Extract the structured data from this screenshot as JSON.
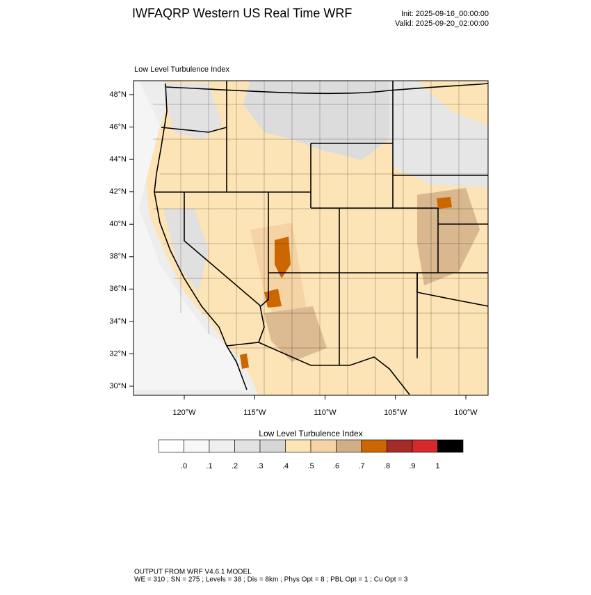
{
  "header": {
    "title": "IWFAQRP Western US Real Time WRF",
    "init": "Init: 2025-09-16_00:00:00",
    "valid": "Valid: 2025-09-20_02:00:00"
  },
  "map": {
    "label": "Low Level Turbulence Index",
    "lat_ticks": [
      {
        "value": 48,
        "label": "48°N"
      },
      {
        "value": 46,
        "label": "46°N"
      },
      {
        "value": 44,
        "label": "44°N"
      },
      {
        "value": 42,
        "label": "42°N"
      },
      {
        "value": 40,
        "label": "40°N"
      },
      {
        "value": 38,
        "label": "38°N"
      },
      {
        "value": 36,
        "label": "36°N"
      },
      {
        "value": 34,
        "label": "34°N"
      },
      {
        "value": 32,
        "label": "32°N"
      },
      {
        "value": 30,
        "label": "30°N"
      }
    ],
    "lon_ticks": [
      {
        "value": -120,
        "label": "120°W"
      },
      {
        "value": -115,
        "label": "115°W"
      },
      {
        "value": -110,
        "label": "110°W"
      },
      {
        "value": -105,
        "label": "105°W"
      },
      {
        "value": -100,
        "label": "100°W"
      }
    ]
  },
  "colorbar": {
    "title": "Low Level Turbulence Index",
    "levels": [
      {
        "value": 0,
        "label": ".0"
      },
      {
        "value": 0.1,
        "label": ".1"
      },
      {
        "value": 0.2,
        "label": ".2"
      },
      {
        "value": 0.3,
        "label": ".3"
      },
      {
        "value": 0.4,
        "label": ".4"
      },
      {
        "value": 0.5,
        "label": ".5"
      },
      {
        "value": 0.6,
        "label": ".6"
      },
      {
        "value": 0.7,
        "label": ".7"
      },
      {
        "value": 0.8,
        "label": ".8"
      },
      {
        "value": 0.9,
        "label": ".9"
      },
      {
        "value": 1,
        "label": "1"
      }
    ],
    "colors": [
      "#ffffff",
      "#f8f8f8",
      "#efefef",
      "#e2e2e2",
      "#d6d6d6",
      "#fde4b6",
      "#f5d3a4",
      "#d2ae86",
      "#cc6600",
      "#a52a2a",
      "#d42a2a",
      "#000000"
    ]
  },
  "footer": {
    "line1": "OUTPUT FROM WRF V4.6.1 MODEL",
    "line2": "WE = 310 ; SN = 275 ; Levels = 38 ; Dis = 8km ; Phys Opt = 8 ; PBL Opt = 1 ; Cu Opt = 3"
  }
}
